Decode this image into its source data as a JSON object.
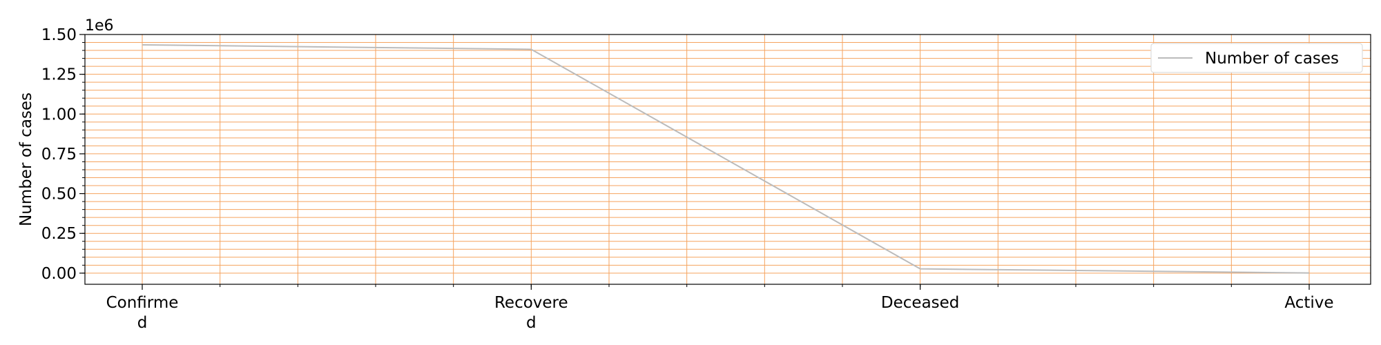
{
  "chart_data": {
    "type": "line",
    "categories": [
      "Confirme\nd",
      "Recovere\nd",
      "Deceased",
      "Active"
    ],
    "series": [
      {
        "name": "Number of cases",
        "values": [
          1435000,
          1407000,
          27000,
          1000
        ]
      }
    ],
    "ylabel": "Number of cases",
    "xlabel": "",
    "ylim": [
      -70000,
      1500000
    ],
    "yticks": [
      0,
      250000,
      500000,
      750000,
      1000000,
      1250000,
      1500000
    ],
    "ytick_labels": [
      "0.00",
      "0.25",
      "0.50",
      "0.75",
      "1.00",
      "1.25",
      "1.50"
    ],
    "offset_label": "1e6",
    "grid": true,
    "minor_grid": true,
    "legend_position": "top-right",
    "colors": {
      "line": "#bbbbbb",
      "grid": "#f5a25d",
      "axis": "#000000"
    }
  }
}
